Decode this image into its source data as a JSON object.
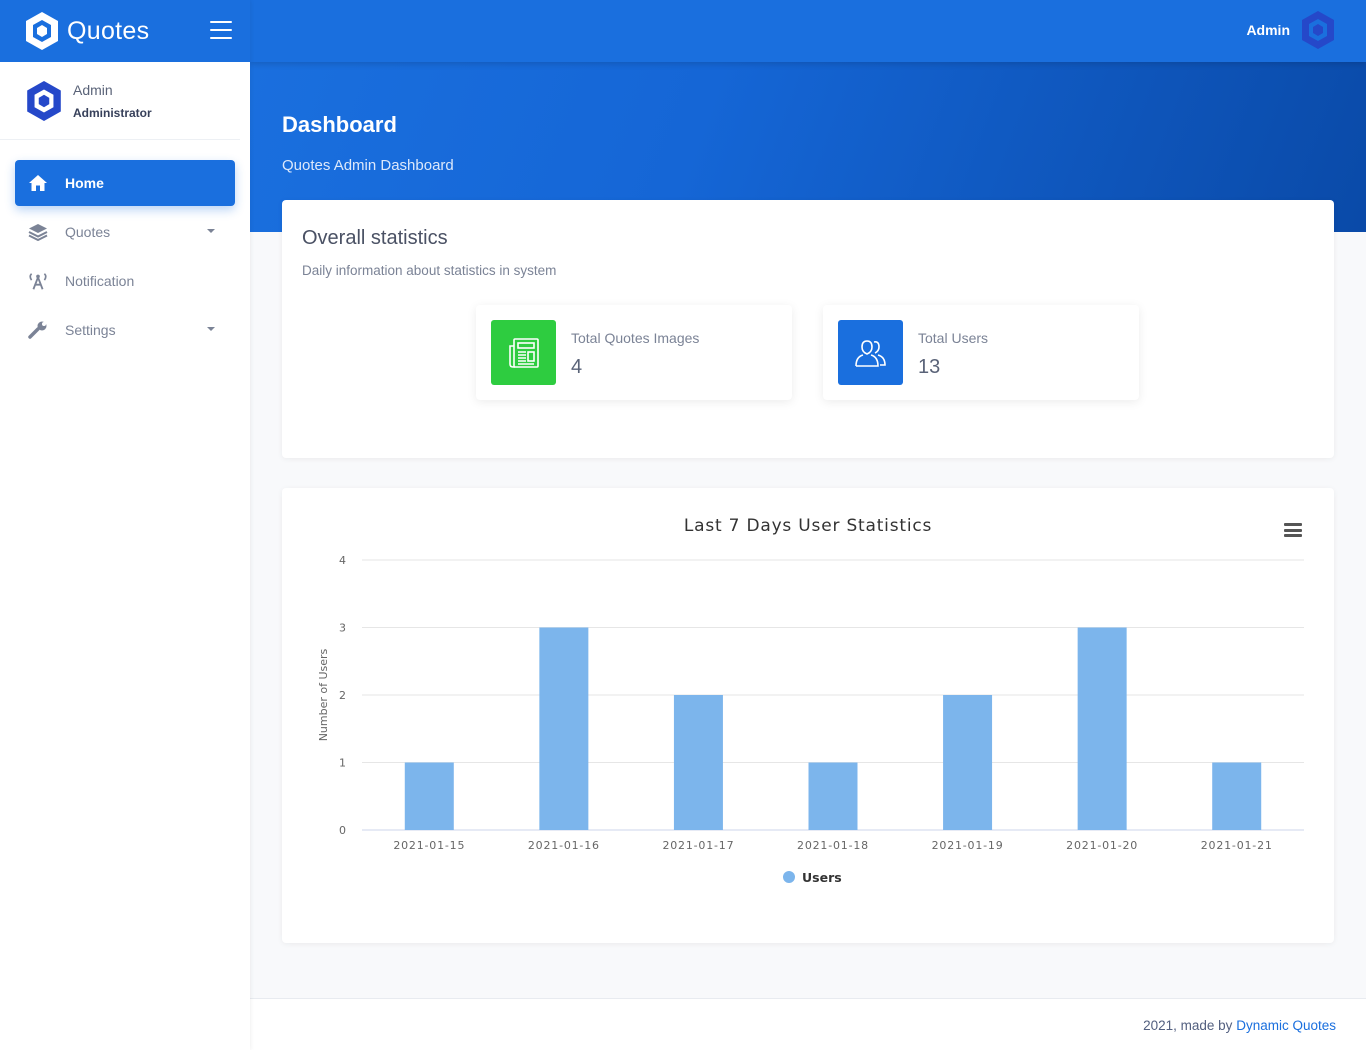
{
  "app": {
    "name": "Quotes"
  },
  "sidebar": {
    "user": {
      "name": "Admin",
      "role": "Administrator"
    },
    "items": [
      {
        "label": "Home",
        "icon": "home-icon",
        "active": true
      },
      {
        "label": "Quotes",
        "icon": "layers-icon",
        "dropdown": true
      },
      {
        "label": "Notification",
        "icon": "broadcast-icon"
      },
      {
        "label": "Settings",
        "icon": "wrench-icon",
        "dropdown": true
      }
    ]
  },
  "topbar": {
    "user_name": "Admin"
  },
  "header": {
    "title": "Dashboard",
    "subtitle": "Quotes Admin Dashboard"
  },
  "stats": {
    "title": "Overall statistics",
    "description": "Daily information about statistics in system",
    "boxes": [
      {
        "label": "Total Quotes Images",
        "value": "4",
        "color": "#2ecc40",
        "icon": "newspaper-icon"
      },
      {
        "label": "Total Users",
        "value": "13",
        "color": "#1a6fde",
        "icon": "users-icon"
      }
    ]
  },
  "chart_data": {
    "type": "bar",
    "title": "Last 7 Days User Statistics",
    "ylabel": "Number of Users",
    "xlabel": "",
    "categories": [
      "2021-01-15",
      "2021-01-16",
      "2021-01-17",
      "2021-01-18",
      "2021-01-19",
      "2021-01-20",
      "2021-01-21"
    ],
    "series": [
      {
        "name": "Users",
        "values": [
          1,
          3,
          2,
          1,
          2,
          3,
          1
        ],
        "color": "#7cb5ec"
      }
    ],
    "ylim": [
      0,
      4
    ],
    "yticks": [
      0,
      1,
      2,
      3,
      4
    ],
    "grid": true,
    "legend": "bottom-center"
  },
  "footer": {
    "text": "2021, made by ",
    "link": "Dynamic Quotes"
  },
  "colors": {
    "primary": "#1a6fde",
    "success": "#2ecc40",
    "bar": "#7cb5ec"
  }
}
